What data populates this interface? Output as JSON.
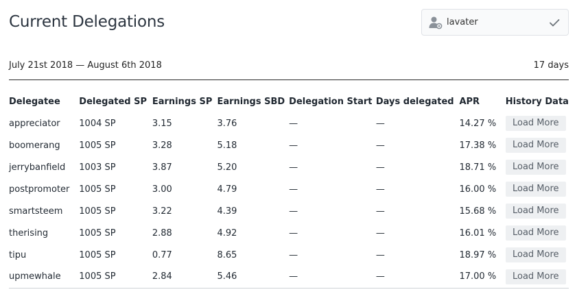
{
  "page_title": "Current Delegations",
  "account": {
    "name": "lavater",
    "icon": "user-icon",
    "selected_icon": "check-icon"
  },
  "range": {
    "label": "July 21st 2018 — August 6th 2018",
    "days": "17 days"
  },
  "table": {
    "headers": [
      "Delegatee",
      "Delegated SP",
      "Earnings SP",
      "Earnings SBD",
      "Delegation Start",
      "Days delegated",
      "APR",
      "History Data"
    ],
    "rows": [
      {
        "delegatee": "appreciator",
        "delegated_sp": "1004 SP",
        "earnings_sp": "3.15",
        "earnings_sbd": "3.76",
        "start": "—",
        "days": "—",
        "apr": "14.27 %",
        "history": "Load More"
      },
      {
        "delegatee": "boomerang",
        "delegated_sp": "1005 SP",
        "earnings_sp": "3.28",
        "earnings_sbd": "5.18",
        "start": "—",
        "days": "—",
        "apr": "17.38 %",
        "history": "Load More"
      },
      {
        "delegatee": "jerrybanfield",
        "delegated_sp": "1003 SP",
        "earnings_sp": "3.87",
        "earnings_sbd": "5.20",
        "start": "—",
        "days": "—",
        "apr": "18.71 %",
        "history": "Load More"
      },
      {
        "delegatee": "postpromoter",
        "delegated_sp": "1005 SP",
        "earnings_sp": "3.00",
        "earnings_sbd": "4.79",
        "start": "—",
        "days": "—",
        "apr": "16.00 %",
        "history": "Load More"
      },
      {
        "delegatee": "smartsteem",
        "delegated_sp": "1005 SP",
        "earnings_sp": "3.22",
        "earnings_sbd": "4.39",
        "start": "—",
        "days": "—",
        "apr": "15.68 %",
        "history": "Load More"
      },
      {
        "delegatee": "therising",
        "delegated_sp": "1005 SP",
        "earnings_sp": "2.88",
        "earnings_sbd": "4.92",
        "start": "—",
        "days": "—",
        "apr": "16.01 %",
        "history": "Load More"
      },
      {
        "delegatee": "tipu",
        "delegated_sp": "1005 SP",
        "earnings_sp": "0.77",
        "earnings_sbd": "8.65",
        "start": "—",
        "days": "—",
        "apr": "18.97 %",
        "history": "Load More"
      },
      {
        "delegatee": "upmewhale",
        "delegated_sp": "1005 SP",
        "earnings_sp": "2.84",
        "earnings_sbd": "5.46",
        "start": "—",
        "days": "—",
        "apr": "17.00 %",
        "history": "Load More"
      }
    ]
  }
}
